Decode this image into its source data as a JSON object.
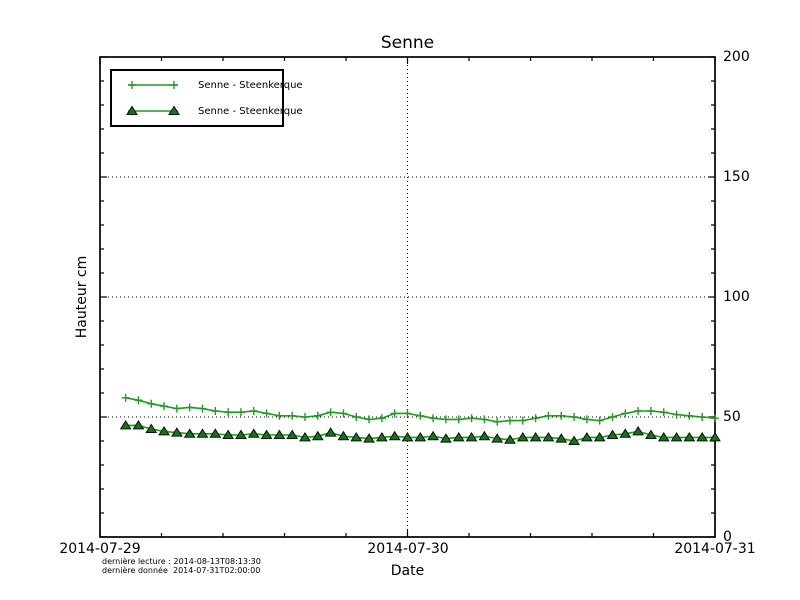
{
  "chart_data": {
    "type": "line",
    "title": "Senne",
    "xlabel": "Date",
    "ylabel": "Hauteur cm",
    "x_ticks": [
      "2014-07-29",
      "2014-07-30",
      "2014-07-31"
    ],
    "y_ticks": [
      0,
      50,
      100,
      150,
      200
    ],
    "ylim": [
      0,
      200
    ],
    "x_hours_span": 48,
    "x_start_hour": 2,
    "x_step_hours": 1,
    "grid": "dotted",
    "legend_position": "upper left",
    "annotations": {
      "line1": "dernière lecture : 2014-08-13T08:13:30",
      "line2": "dernière donnée  2014-07-31T02:00:00"
    },
    "series": [
      {
        "name": "Senne - Steenkerque",
        "marker": "plus",
        "color": "#229b22",
        "values": [
          58,
          57,
          55.5,
          54.5,
          53.5,
          54,
          53.5,
          52.5,
          52,
          52,
          52.5,
          51.5,
          50.5,
          50.5,
          50,
          50.5,
          52,
          51.5,
          50,
          49,
          49.5,
          51.5,
          51.5,
          50.5,
          49.5,
          49,
          49,
          49.5,
          49,
          48,
          48.5,
          48.5,
          49.5,
          50.5,
          50.5,
          50,
          49,
          48.5,
          50,
          51.5,
          52.5,
          52.5,
          52,
          51,
          50.5,
          50,
          49.5
        ]
      },
      {
        "name": "Senne - Steenkerque",
        "marker": "triangle",
        "color": "#229b22",
        "marker_fill": "#1d6f1d",
        "marker_edge": "#001a00",
        "values": [
          46.5,
          46.5,
          45,
          44,
          43.5,
          43,
          43,
          43,
          42.5,
          42.5,
          43,
          42.5,
          42.5,
          42.5,
          41.5,
          42,
          43.5,
          42,
          41.5,
          41,
          41.5,
          42,
          41.5,
          41.5,
          42,
          41,
          41.5,
          41.5,
          42,
          41,
          40.5,
          41.5,
          41.5,
          41.5,
          41,
          40,
          41.5,
          41.5,
          42.5,
          43,
          44,
          42.5,
          41.5,
          41.5,
          41.5,
          41.5,
          41.5
        ]
      }
    ]
  }
}
